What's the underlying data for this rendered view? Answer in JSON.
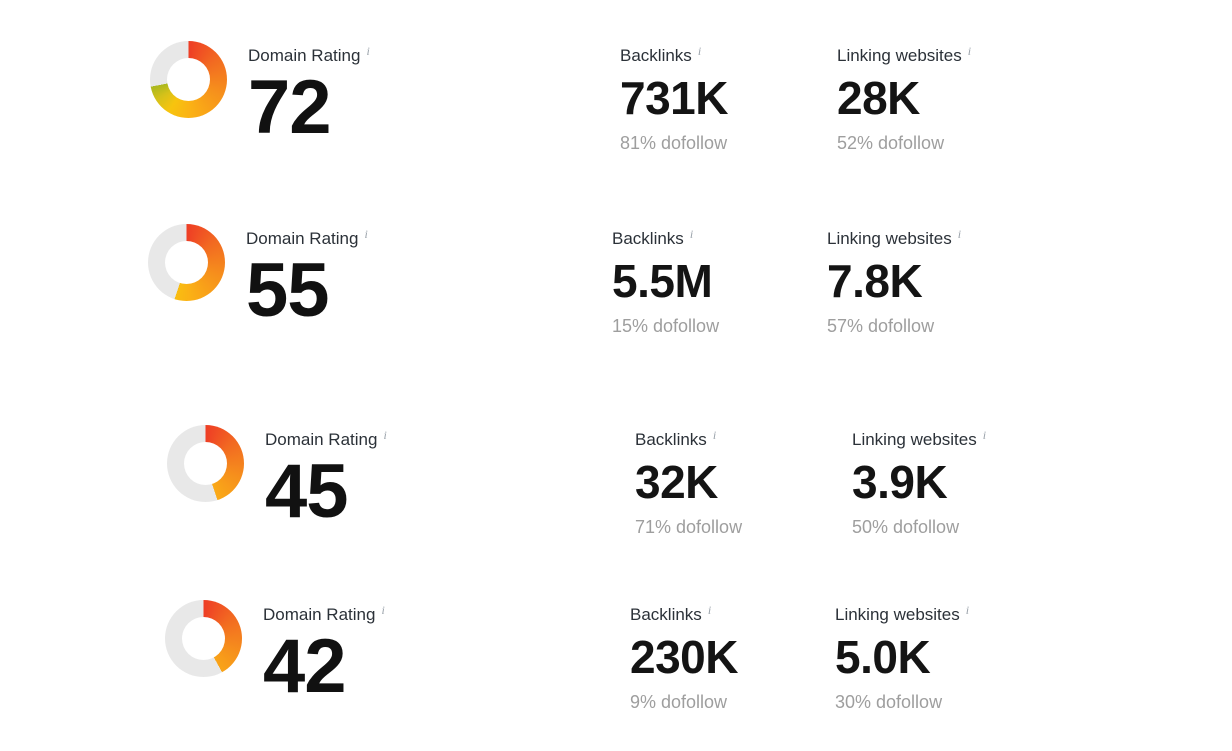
{
  "labels": {
    "domain_rating": "Domain Rating",
    "backlinks": "Backlinks",
    "linking_websites": "Linking websites",
    "info_icon": "i"
  },
  "colors": {
    "background": "#ffffff",
    "gauge_track": "#e8e8e8",
    "gauge_ramp": [
      [
        0,
        "#ee3d25"
      ],
      [
        54,
        "#f26a21"
      ],
      [
        115,
        "#f6911c"
      ],
      [
        175,
        "#fbb115"
      ],
      [
        212,
        "#f7c40e"
      ],
      [
        238,
        "#d5c11a"
      ],
      [
        262,
        "#a4b71e"
      ],
      [
        310,
        "#60a923"
      ],
      [
        360,
        "#2e981d"
      ]
    ],
    "label_text": "#2b3138",
    "value_text": "#141414",
    "muted_text": "#9e9e9e",
    "info_icon": "#9ba3ab"
  },
  "rows": [
    {
      "domain_rating": 72,
      "backlinks": "731K",
      "backlinks_dofollow": "81% dofollow",
      "linking_websites": "28K",
      "linking_websites_dofollow": "52% dofollow"
    },
    {
      "domain_rating": 55,
      "backlinks": "5.5M",
      "backlinks_dofollow": "15% dofollow",
      "linking_websites": "7.8K",
      "linking_websites_dofollow": "57% dofollow"
    },
    {
      "domain_rating": 45,
      "backlinks": "32K",
      "backlinks_dofollow": "71% dofollow",
      "linking_websites": "3.9K",
      "linking_websites_dofollow": "50% dofollow"
    },
    {
      "domain_rating": 42,
      "backlinks": "230K",
      "backlinks_dofollow": "9% dofollow",
      "linking_websites": "5.0K",
      "linking_websites_dofollow": "30% dofollow"
    }
  ],
  "chart_data": [
    {
      "type": "pie",
      "subtype": "donut-gauge",
      "title": "Domain Rating",
      "value": 72,
      "range": [
        0,
        100
      ],
      "slices": [
        {
          "label": "rating",
          "value": 72,
          "color": "gradient red→orange→yellow→yellow-green, clockwise from top"
        },
        {
          "label": "remainder",
          "value": 28,
          "color": "#e8e8e8"
        }
      ]
    },
    {
      "type": "pie",
      "subtype": "donut-gauge",
      "title": "Domain Rating",
      "value": 55,
      "range": [
        0,
        100
      ],
      "slices": [
        {
          "label": "rating",
          "value": 55,
          "color": "gradient red→orange→amber, clockwise from top"
        },
        {
          "label": "remainder",
          "value": 45,
          "color": "#e8e8e8"
        }
      ]
    },
    {
      "type": "pie",
      "subtype": "donut-gauge",
      "title": "Domain Rating",
      "value": 45,
      "range": [
        0,
        100
      ],
      "slices": [
        {
          "label": "rating",
          "value": 45,
          "color": "gradient red→orange→amber, clockwise from top"
        },
        {
          "label": "remainder",
          "value": 55,
          "color": "#e8e8e8"
        }
      ]
    },
    {
      "type": "pie",
      "subtype": "donut-gauge",
      "title": "Domain Rating",
      "value": 42,
      "range": [
        0,
        100
      ],
      "slices": [
        {
          "label": "rating",
          "value": 42,
          "color": "gradient red→orange→amber, clockwise from top"
        },
        {
          "label": "remainder",
          "value": 58,
          "color": "#e8e8e8"
        }
      ]
    }
  ]
}
